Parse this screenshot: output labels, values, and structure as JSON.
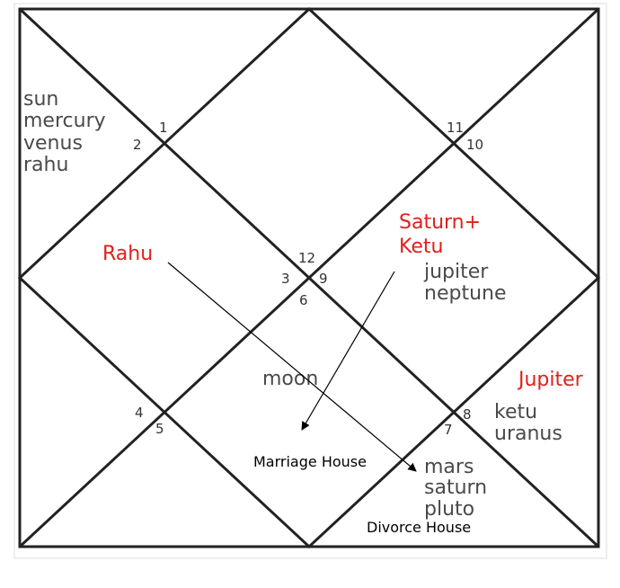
{
  "colors": {
    "line": "#222222",
    "text": "#4a4a4a",
    "highlight": "#e0201b",
    "frame": "#dcdcdc"
  },
  "house_numbers": [
    "1",
    "2",
    "11",
    "10",
    "12",
    "3",
    "9",
    "6",
    "4",
    "5",
    "8",
    "7"
  ],
  "house_planets": {
    "h2": [
      "sun",
      "mercury",
      "venus",
      "rahu"
    ],
    "h9": [
      "jupiter",
      "neptune"
    ],
    "h6": [
      "moon"
    ],
    "h8": [
      "ketu",
      "uranus"
    ],
    "h7": [
      "mars",
      "saturn",
      "pluto"
    ]
  },
  "annotations": {
    "rahu": "Rahu",
    "saturn_ketu": [
      "Saturn+",
      "Ketu"
    ],
    "jupiter": "Jupiter",
    "marriage_house": "Marriage House",
    "divorce_house": "Divorce House"
  }
}
